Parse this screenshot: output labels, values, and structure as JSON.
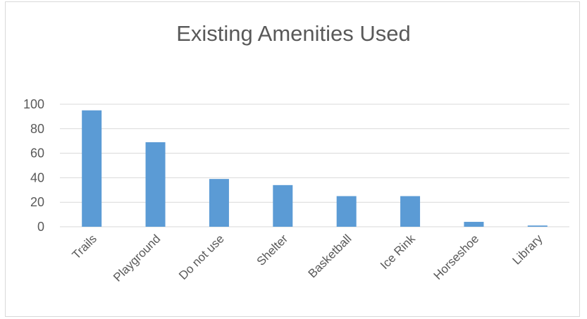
{
  "chart_data": {
    "type": "bar",
    "title": "Existing Amenities Used",
    "xlabel": "",
    "ylabel": "",
    "categories": [
      "Trails",
      "Playground",
      "Do not use",
      "Shelter",
      "Basketball",
      "Ice Rink",
      "Horseshoe",
      "Library"
    ],
    "values": [
      95,
      69,
      39,
      34,
      25,
      25,
      4,
      1
    ],
    "ylim": [
      0,
      100
    ],
    "yticks": [
      "0",
      "20",
      "40",
      "60",
      "80",
      "100"
    ],
    "grid": true,
    "legend": "none",
    "bar_color": "#5b9bd5",
    "grid_color": "#d9d9d9",
    "text_color": "#595959"
  }
}
